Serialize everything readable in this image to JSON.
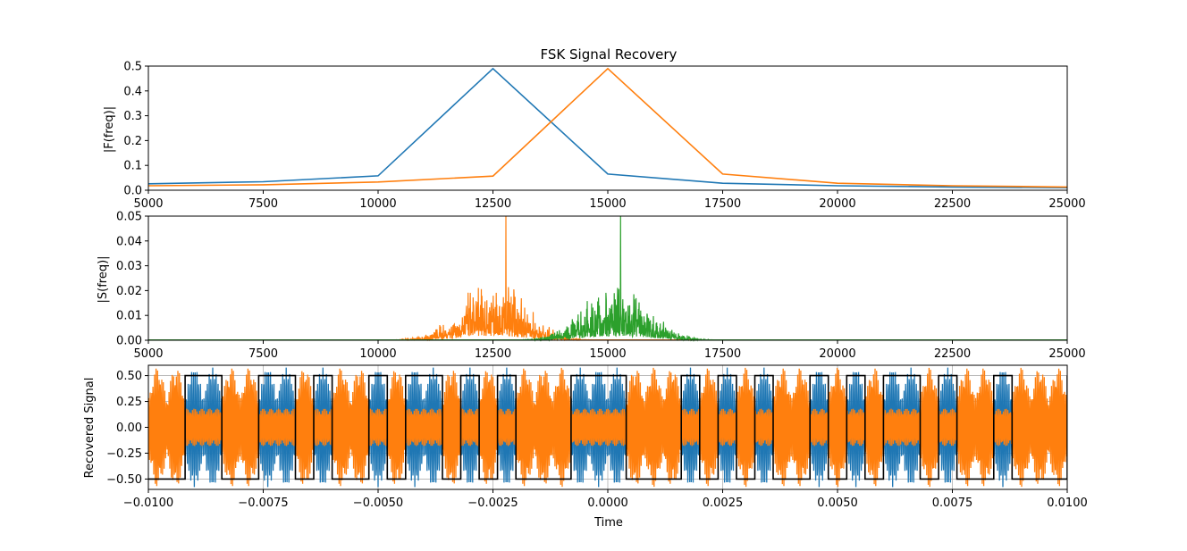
{
  "chart_data": [
    {
      "type": "line",
      "title": "FSK Signal Recovery",
      "xlabel": "",
      "ylabel": "|F(freq)|",
      "xlim": [
        5000,
        25000
      ],
      "ylim": [
        0,
        0.5
      ],
      "xticks": [
        "5000",
        "7500",
        "10000",
        "12500",
        "15000",
        "17500",
        "20000",
        "22500",
        "25000"
      ],
      "yticks": [
        "0.0",
        "0.1",
        "0.2",
        "0.3",
        "0.4",
        "0.5"
      ],
      "grid": false,
      "series": [
        {
          "color": "#1f77b4",
          "x": [
            5000,
            7500,
            10000,
            12500,
            15000,
            17500,
            20000,
            22500,
            25000
          ],
          "y": [
            0.026,
            0.034,
            0.058,
            0.49,
            0.065,
            0.028,
            0.018,
            0.013,
            0.01
          ]
        },
        {
          "color": "#ff7f0e",
          "x": [
            5000,
            7500,
            10000,
            12500,
            15000,
            17500,
            20000,
            22500,
            25000
          ],
          "y": [
            0.018,
            0.022,
            0.033,
            0.057,
            0.49,
            0.065,
            0.028,
            0.018,
            0.013
          ]
        }
      ]
    },
    {
      "type": "line",
      "title": "",
      "xlabel": "",
      "ylabel": "|S(freq)|",
      "xlim": [
        5000,
        25000
      ],
      "ylim": [
        0,
        0.05
      ],
      "xticks": [
        "5000",
        "7500",
        "10000",
        "12500",
        "15000",
        "17500",
        "20000",
        "22500",
        "25000"
      ],
      "yticks": [
        "0.00",
        "0.01",
        "0.02",
        "0.03",
        "0.04",
        "0.05"
      ],
      "grid": false,
      "series": [
        {
          "color": "#ff7f0e",
          "center": 12500,
          "spread": 1150,
          "amplitude": 0.012,
          "peak_x": 12780,
          "peak_y": 0.05
        },
        {
          "color": "#2ca02c",
          "center": 15200,
          "spread": 1150,
          "amplitude": 0.011,
          "peak_x": 15280,
          "peak_y": 0.05
        }
      ]
    },
    {
      "type": "line",
      "title": "",
      "xlabel": "Time",
      "ylabel": "Recovered Signal",
      "xlim": [
        -0.01,
        0.01
      ],
      "ylim": [
        -0.6,
        0.6
      ],
      "xticks": [
        "−0.0100",
        "−0.0075",
        "−0.0050",
        "−0.0025",
        "0.0000",
        "0.0025",
        "0.0050",
        "0.0075",
        "0.0100"
      ],
      "yticks": [
        "−0.50",
        "−0.25",
        "0.00",
        "0.25",
        "0.50"
      ],
      "grid": true,
      "bit_period": 0.0004,
      "bits": [
        0,
        0,
        1,
        1,
        0,
        0,
        1,
        1,
        0,
        1,
        0,
        0,
        1,
        0,
        1,
        1,
        0,
        1,
        0,
        1,
        0,
        0,
        0,
        1,
        1,
        1,
        0,
        0,
        0,
        1,
        0,
        1,
        0,
        1,
        0,
        0,
        1,
        0,
        1,
        0,
        1,
        1,
        0,
        1,
        0,
        0,
        1,
        0,
        0,
        0,
        1
      ],
      "square_wave_level": 0.5,
      "series": [
        {
          "color": "#1f77b4",
          "role": "recovered signal (mark)"
        },
        {
          "color": "#ff7f0e",
          "role": "recovered signal (space)"
        },
        {
          "color": "#000000",
          "role": "bit sequence"
        }
      ]
    }
  ]
}
